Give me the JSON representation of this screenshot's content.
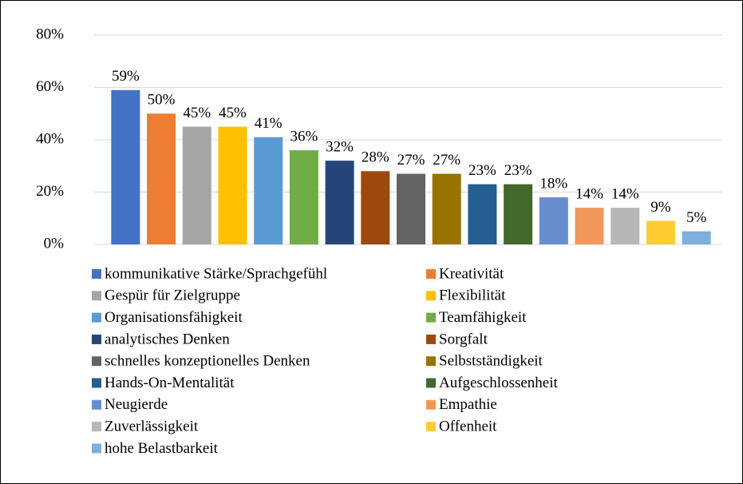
{
  "chart_data": {
    "type": "bar",
    "ylim": [
      0,
      80
    ],
    "yticks": [
      {
        "value": 0,
        "label": "0%"
      },
      {
        "value": 20,
        "label": "20%"
      },
      {
        "value": 40,
        "label": "40%"
      },
      {
        "value": 60,
        "label": "60%"
      },
      {
        "value": 80,
        "label": "80%"
      }
    ],
    "grid": true,
    "legend": "bottom",
    "series": [
      {
        "name": "kommunikative Stärke/Sprachgefühl",
        "color": "#4472c4",
        "values": [
          59
        ],
        "value_labels": [
          "59%"
        ]
      },
      {
        "name": "Kreativität",
        "color": "#ed7d31",
        "values": [
          50
        ],
        "value_labels": [
          "50%"
        ]
      },
      {
        "name": "Gespür für Zielgruppe",
        "color": "#a5a5a5",
        "values": [
          45
        ],
        "value_labels": [
          "45%"
        ]
      },
      {
        "name": "Flexibilität",
        "color": "#ffc000",
        "values": [
          45
        ],
        "value_labels": [
          "45%"
        ]
      },
      {
        "name": "Organisationsfähigkeit",
        "color": "#5b9bd5",
        "values": [
          41
        ],
        "value_labels": [
          "41%"
        ]
      },
      {
        "name": "Teamfähigkeit",
        "color": "#70ad47",
        "values": [
          36
        ],
        "value_labels": [
          "36%"
        ]
      },
      {
        "name": "analytisches Denken",
        "color": "#264478",
        "values": [
          32
        ],
        "value_labels": [
          "32%"
        ]
      },
      {
        "name": "Sorgfalt",
        "color": "#9e480e",
        "values": [
          28
        ],
        "value_labels": [
          "28%"
        ]
      },
      {
        "name": "schnelles konzeptionelles Denken",
        "color": "#636363",
        "values": [
          27
        ],
        "value_labels": [
          "27%"
        ]
      },
      {
        "name": "Selbstständigkeit",
        "color": "#997300",
        "values": [
          27
        ],
        "value_labels": [
          "27%"
        ]
      },
      {
        "name": "Hands-On-Mentalität",
        "color": "#255e91",
        "values": [
          23
        ],
        "value_labels": [
          "23%"
        ]
      },
      {
        "name": "Aufgeschlossenheit",
        "color": "#43682b",
        "values": [
          23
        ],
        "value_labels": [
          "23%"
        ]
      },
      {
        "name": "Neugierde",
        "color": "#698ed0",
        "values": [
          18
        ],
        "value_labels": [
          "18%"
        ]
      },
      {
        "name": "Empathie",
        "color": "#f1975a",
        "values": [
          14
        ],
        "value_labels": [
          "14%"
        ]
      },
      {
        "name": "Zuverlässigkeit",
        "color": "#b7b7b7",
        "values": [
          14
        ],
        "value_labels": [
          "14%"
        ]
      },
      {
        "name": "Offenheit",
        "color": "#ffcd33",
        "values": [
          9
        ],
        "value_labels": [
          "9%"
        ]
      },
      {
        "name": "hohe Belastbarkeit",
        "color": "#7cafdd",
        "values": [
          5
        ],
        "value_labels": [
          "5%"
        ]
      }
    ]
  }
}
